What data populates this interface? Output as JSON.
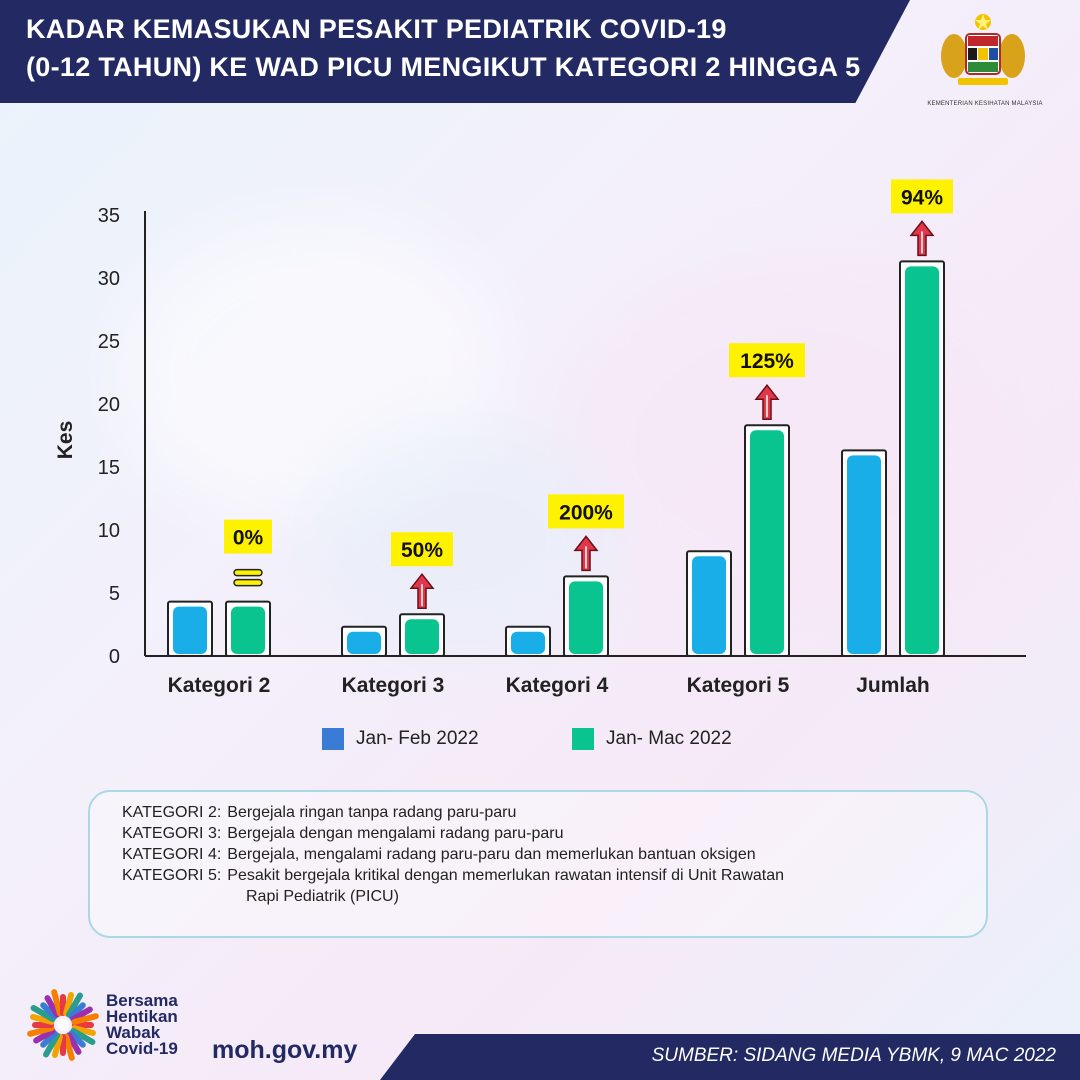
{
  "header": {
    "title_line1": "KADAR KEMASUKAN PESAKIT PEDIATRIK COVID-19",
    "title_line2": "(0-12 TAHUN) KE WAD PICU MENGIKUT KATEGORI 2 HINGGA 5",
    "crest_caption": "KEMENTERIAN KESIHATAN MALAYSIA"
  },
  "colors": {
    "navy": "#232a63",
    "series_blue": "#1aaee8",
    "series_green": "#0ac48f",
    "legend_blue": "#3a7bd5",
    "badge_yellow": "#fff200",
    "arrow_red": "#e0384a"
  },
  "chart_data": {
    "type": "bar",
    "ylabel": "Kes",
    "ylim": [
      0,
      35
    ],
    "yticks": [
      0,
      5,
      10,
      15,
      20,
      25,
      30,
      35
    ],
    "categories": [
      "Kategori 2",
      "Kategori 3",
      "Kategori 4",
      "Kategori 5",
      "Jumlah"
    ],
    "series": [
      {
        "name": "Jan- Feb 2022",
        "values": [
          4,
          2,
          2,
          8,
          16
        ]
      },
      {
        "name": "Jan- Mac 2022",
        "values": [
          4,
          3,
          6,
          18,
          31
        ]
      }
    ],
    "annotations": [
      {
        "category": "Kategori 2",
        "label": "0%",
        "marker": "equal"
      },
      {
        "category": "Kategori 3",
        "label": "50%",
        "marker": "up-arrow"
      },
      {
        "category": "Kategori 4",
        "label": "200%",
        "marker": "up-arrow"
      },
      {
        "category": "Kategori 5",
        "label": "125%",
        "marker": "up-arrow"
      },
      {
        "category": "Jumlah",
        "label": "94%",
        "marker": "up-arrow"
      }
    ]
  },
  "notes": [
    {
      "key": "KATEGORI 2:",
      "text": "Bergejala ringan tanpa radang paru-paru"
    },
    {
      "key": "KATEGORI 3:",
      "text": "Bergejala dengan mengalami radang paru-paru"
    },
    {
      "key": "KATEGORI 4:",
      "text": "Bergejala, mengalami radang paru-paru dan memerlukan bantuan oksigen"
    },
    {
      "key": "KATEGORI 5:",
      "text": "Pesakit bergejala kritikal dengan memerlukan rawatan intensif di Unit Rawatan"
    }
  ],
  "notes_continuation": "Rapi Pediatrik (PICU)",
  "footer": {
    "campaign": [
      "Bersama",
      "Hentikan",
      "Wabak",
      "Covid-19"
    ],
    "site": "moh.gov.my",
    "source": "SUMBER: SIDANG MEDIA YBMK, 9 MAC 2022"
  }
}
